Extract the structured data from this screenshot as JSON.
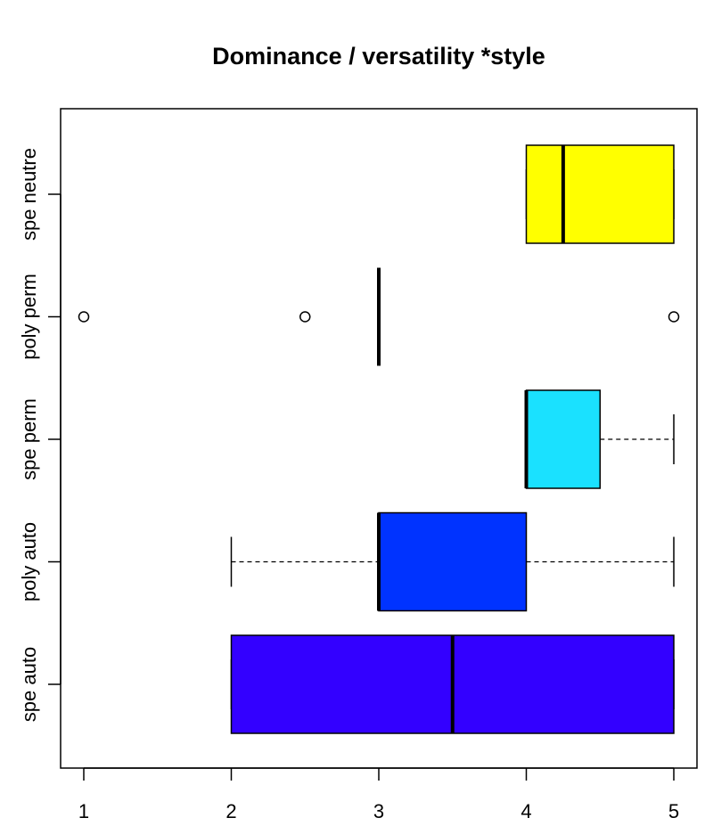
{
  "chart_data": {
    "type": "boxplot",
    "orientation": "horizontal",
    "title": "Dominance /  versatility *style",
    "xlabel": "",
    "ylabel": "",
    "xlim": [
      0.85,
      5.15
    ],
    "xticks": [
      1,
      2,
      3,
      4,
      5
    ],
    "grid": false,
    "legend": "none",
    "categories": [
      "spe auto",
      "poly auto",
      "spe perm",
      "poly perm",
      "spe neutre"
    ],
    "boxes": [
      {
        "category": "spe auto",
        "whisker_low": 2.0,
        "q1": 2.0,
        "median": 3.5,
        "q3": 5.0,
        "whisker_high": 5.0,
        "outliers": [],
        "color": "#3300ff"
      },
      {
        "category": "poly auto",
        "whisker_low": 2.0,
        "q1": 3.0,
        "median": 3.0,
        "q3": 4.0,
        "whisker_high": 5.0,
        "outliers": [],
        "color": "#0033ff"
      },
      {
        "category": "spe perm",
        "whisker_low": 4.0,
        "q1": 4.0,
        "median": 4.0,
        "q3": 4.5,
        "whisker_high": 5.0,
        "outliers": [],
        "color": "#1ae1ff"
      },
      {
        "category": "poly perm",
        "whisker_low": 3.0,
        "q1": 3.0,
        "median": 3.0,
        "q3": 3.0,
        "whisker_high": 3.0,
        "outliers": [
          1,
          2.5,
          5
        ],
        "color": "#cc00ff"
      },
      {
        "category": "spe neutre",
        "whisker_low": 4.0,
        "q1": 4.0,
        "median": 4.25,
        "q3": 5.0,
        "whisker_high": 5.0,
        "outliers": [],
        "color": "#ffff00"
      }
    ]
  }
}
